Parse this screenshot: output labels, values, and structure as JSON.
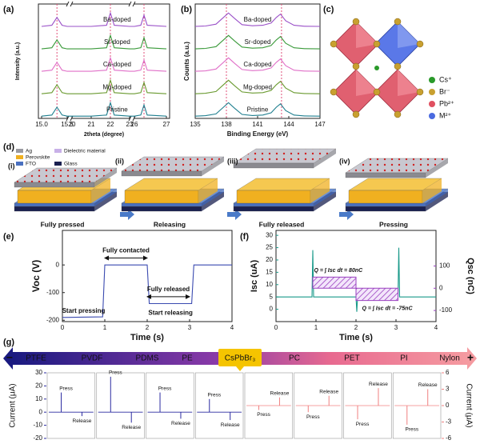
{
  "panel_labels": [
    "(a)",
    "(b)",
    "(c)",
    "(d)",
    "(e)",
    "(f)",
    "(g)"
  ],
  "chart_data": [
    {
      "type": "line",
      "axis_breaks": true,
      "xlabel": "2theta (degree)",
      "ylabel": "Intensity (a.u.)",
      "xbreaks": [
        [
          15.0,
          15.5
        ],
        [
          20,
          23
        ],
        [
          26,
          27
        ]
      ],
      "xticks": [
        {
          "value": 15,
          "label": "15.0"
        },
        15.5,
        20,
        21,
        22,
        23,
        26,
        27
      ],
      "ylim": [
        -0.1,
        5.0
      ],
      "vlines": [
        15.3,
        22,
        26.3
      ],
      "vline_color": "#e0507a",
      "x": [
        15.0,
        15.2,
        15.3,
        15.4,
        15.5,
        20,
        21,
        21.8,
        22,
        22.2,
        23,
        26,
        26.2,
        26.3,
        26.4,
        27
      ],
      "series": [
        {
          "name": "Pristine",
          "color": "#1f7f8f",
          "values": [
            0,
            0.05,
            0.4,
            0.05,
            0,
            0,
            0,
            0.05,
            0.6,
            0.05,
            0,
            0,
            0.05,
            0.5,
            0.05,
            0
          ]
        },
        {
          "name": "Mg-doped",
          "color": "#6a9a30",
          "values": [
            1,
            1.05,
            1.4,
            1.05,
            1,
            1,
            1,
            1.05,
            1.6,
            1.05,
            1,
            1,
            1.05,
            1.5,
            1.05,
            1
          ]
        },
        {
          "name": "Ca-doped",
          "color": "#e070c8",
          "values": [
            2,
            2.05,
            2.4,
            2.05,
            2,
            2,
            2,
            2.05,
            2.6,
            2.05,
            2,
            2,
            2.05,
            2.5,
            2.05,
            2
          ]
        },
        {
          "name": "Sr-doped",
          "color": "#3a9a3a",
          "values": [
            3,
            3.05,
            3.4,
            3.05,
            3,
            3,
            3,
            3.05,
            3.6,
            3.05,
            3,
            3,
            3.05,
            3.5,
            3.05,
            3
          ]
        },
        {
          "name": "Ba-doped",
          "color": "#9a50c8",
          "values": [
            4,
            4.05,
            4.4,
            4.05,
            4,
            4,
            4,
            4.05,
            4.6,
            4.05,
            4,
            4,
            4.05,
            4.5,
            4.05,
            4
          ]
        }
      ]
    },
    {
      "type": "line",
      "xlabel": "Binding Energy (eV)",
      "ylabel": "Counts (a.u.)",
      "xlim": [
        135,
        147
      ],
      "xticks": [
        135,
        138,
        141,
        144,
        147
      ],
      "ylim": [
        -0.1,
        5.0
      ],
      "vlines": [
        138,
        143.3
      ],
      "vline_color": "#e0507a",
      "x": [
        135,
        136,
        137,
        137.6,
        138.2,
        138.8,
        139.5,
        140.5,
        141.5,
        142.3,
        142.8,
        143.2,
        143.7,
        144.5,
        145.5,
        147
      ],
      "series": [
        {
          "name": "Pristine",
          "color": "#1f7f8f",
          "values": [
            0,
            0.02,
            0.1,
            0.35,
            0.6,
            0.35,
            0.08,
            0.03,
            0.05,
            0.15,
            0.4,
            0.55,
            0.25,
            0.05,
            0.01,
            0
          ]
        },
        {
          "name": "Mg-doped",
          "color": "#6a9a30",
          "values": [
            1,
            1.02,
            1.1,
            1.35,
            1.6,
            1.35,
            1.08,
            1.03,
            1.05,
            1.15,
            1.4,
            1.55,
            1.25,
            1.05,
            1.01,
            1
          ]
        },
        {
          "name": "Ca-doped",
          "color": "#e070c8",
          "values": [
            2,
            2.02,
            2.1,
            2.35,
            2.6,
            2.35,
            2.08,
            2.03,
            2.05,
            2.15,
            2.4,
            2.55,
            2.25,
            2.05,
            2.01,
            2
          ]
        },
        {
          "name": "Sr-doped",
          "color": "#3a9a3a",
          "values": [
            3,
            3.02,
            3.1,
            3.35,
            3.6,
            3.35,
            3.08,
            3.03,
            3.05,
            3.15,
            3.4,
            3.55,
            3.25,
            3.05,
            3.01,
            3
          ]
        },
        {
          "name": "Ba-doped",
          "color": "#9a50c8",
          "values": [
            4,
            4.02,
            4.1,
            4.35,
            4.6,
            4.35,
            4.08,
            4.03,
            4.05,
            4.15,
            4.4,
            4.55,
            4.25,
            4.05,
            4.01,
            4
          ]
        }
      ]
    },
    {
      "type": "line",
      "xlabel": "Time (s)",
      "ylabel": "Voc (V)",
      "xlim": [
        0,
        4
      ],
      "xticks": [
        0,
        1,
        2,
        3,
        4
      ],
      "ylim": [
        -205,
        125
      ],
      "yticks": [
        0,
        -100,
        -200
      ],
      "annotations": [
        "Fully contacted",
        "Fully released",
        "Start pressing",
        "Start releasing"
      ],
      "series": [
        {
          "color": "#3a4ab0",
          "x": [
            0,
            0.95,
            1.0,
            2.0,
            2.05,
            3.05,
            3.1,
            4
          ],
          "values": [
            -190,
            -188,
            0,
            0,
            -140,
            -140,
            0,
            0
          ]
        }
      ]
    },
    {
      "type": "dual",
      "xlabel": "Time (s)",
      "ylabel": "Isc (uA)",
      "y2label": "Qsc (nC)",
      "xlim": [
        0,
        4
      ],
      "xticks": [
        0,
        1,
        2,
        3,
        4
      ],
      "ylim": [
        -5,
        32
      ],
      "yticks": [
        0,
        5,
        10,
        15,
        20,
        25,
        30
      ],
      "y2lim": [
        -150,
        260
      ],
      "y2ticks": [
        100,
        0,
        -100
      ],
      "ycolor": "#1a9a8a",
      "y2color": "#9a40c0",
      "annotations": [
        "Q = ∫ Isc dt = 80nC",
        "Q = ∫ Isc dt = -75nC"
      ],
      "series": [
        {
          "color": "#1a9a8a",
          "x": [
            0,
            0.9,
            0.92,
            0.94,
            2.0,
            2.02,
            2.04,
            3.05,
            3.07,
            3.09,
            4
          ],
          "values": [
            5,
            5,
            24,
            5,
            5,
            -1,
            5,
            5,
            25,
            5,
            5
          ]
        },
        {
          "color": "#9a40c0",
          "axis": "y2",
          "x": [
            0.92,
            0.92,
            2.0,
            2.0,
            3.05,
            3.05
          ],
          "values": [
            0,
            50,
            50,
            -55,
            -55,
            0
          ]
        }
      ]
    },
    {
      "type": "spike",
      "ylabel": "Current (μA)",
      "y2label": "Current (μA)",
      "ylim": [
        -20,
        30
      ],
      "yticks": [
        30,
        20,
        10,
        0,
        -10,
        -20
      ],
      "y2lim": [
        -6,
        6
      ],
      "y2ticks": [
        6,
        3,
        0,
        -3,
        -6
      ],
      "axes": [
        "y",
        "y",
        "y",
        "y",
        "y2",
        "y2",
        "y2",
        "y2"
      ],
      "colors": {
        "y": "#2a2aa0",
        "y2": "#f08080"
      },
      "series": [
        {
          "name": "Press",
          "values": [
            15,
            27,
            15,
            10,
            -0.8,
            -1.2,
            -2.5,
            -3.5
          ]
        },
        {
          "name": "Release",
          "values": [
            -3,
            -8,
            -5,
            -6,
            1.5,
            1.8,
            3.2,
            3.0
          ]
        }
      ]
    }
  ],
  "structure_legend": [
    {
      "name": "Cs⁺",
      "color": "#2a9a2a"
    },
    {
      "name": "Br⁻",
      "color": "#c8a030"
    },
    {
      "name": "Pb²⁺",
      "color": "#e05060"
    },
    {
      "name": "M²⁺",
      "color": "#4a6ae0"
    }
  ],
  "device_legend": [
    {
      "name": "Ag",
      "color": "#9a9aa0"
    },
    {
      "name": "Dielectric material",
      "color": "#c8b0e8"
    },
    {
      "name": "Perovskite",
      "color": "#f0b020"
    },
    {
      "name": "FTO",
      "color": "#4a70c0"
    },
    {
      "name": "Glass",
      "color": "#1a2050"
    }
  ],
  "device_steps": [
    {
      "numeral": "(i)",
      "caption": "Fully pressed"
    },
    {
      "numeral": "(ii)",
      "caption": "Releasing"
    },
    {
      "numeral": "(iii)",
      "caption": "Fully released"
    },
    {
      "numeral": "(iv)",
      "caption": "Pressing"
    }
  ],
  "triboelectric_series": {
    "minus": "−",
    "plus": "+",
    "highlight": 4,
    "materials": [
      "PTFE",
      "PVDF",
      "PDMS",
      "PE",
      "CsPbBr₃",
      "PC",
      "PET",
      "PI",
      "Nylon"
    ]
  }
}
